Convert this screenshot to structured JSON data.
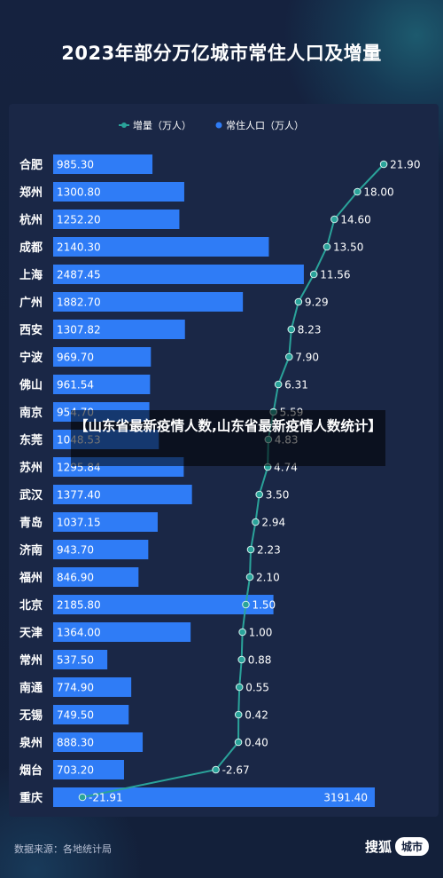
{
  "chart_data": {
    "type": "bar",
    "title": "2023年部分万亿城市常住人口及增量",
    "legend": {
      "placement": "top-right",
      "entries": [
        "增量（万人）",
        "常住人口（万人）"
      ]
    },
    "categories": [
      "合肥",
      "郑州",
      "杭州",
      "成都",
      "上海",
      "广州",
      "西安",
      "宁波",
      "佛山",
      "南京",
      "东莞",
      "苏州",
      "武汉",
      "青岛",
      "济南",
      "福州",
      "北京",
      "天津",
      "常州",
      "南通",
      "无锡",
      "泉州",
      "烟台",
      "重庆"
    ],
    "series": [
      {
        "name": "常住人口（万人）",
        "type": "bar",
        "color": "#2f7cf6",
        "values": [
          985.3,
          1300.8,
          1252.2,
          2140.3,
          2487.45,
          1882.7,
          1307.82,
          969.7,
          961.54,
          954.7,
          1048.53,
          1295.84,
          1377.4,
          1037.15,
          943.7,
          846.9,
          2185.8,
          1364.0,
          537.5,
          774.9,
          749.5,
          888.3,
          703.2,
          3191.4
        ],
        "labels": [
          "985.30",
          "1300.80",
          "1252.20",
          "2140.30",
          "2487.45",
          "1882.70",
          "1307.82",
          "969.70",
          "961.54",
          "954.70",
          "1048.53",
          "1295.84",
          "1377.40",
          "1037.15",
          "943.70",
          "846.90",
          "2185.80",
          "1364.00",
          "537.50",
          "774.90",
          "749.50",
          "888.30",
          "703.20",
          "3191.40"
        ]
      },
      {
        "name": "增量（万人）",
        "type": "line",
        "color": "#2aa39a",
        "values": [
          21.9,
          18.0,
          14.6,
          13.5,
          11.56,
          9.29,
          8.23,
          7.9,
          6.31,
          5.59,
          4.83,
          4.74,
          3.5,
          2.94,
          2.23,
          2.1,
          1.5,
          1.0,
          0.88,
          0.55,
          0.42,
          0.4,
          -2.67,
          -21.91
        ],
        "labels": [
          "21.90",
          "18.00",
          "14.60",
          "13.50",
          "11.56",
          "9.29",
          "8.23",
          "7.90",
          "6.31",
          "5.59",
          "4.83",
          "4.74",
          "3.50",
          "2.94",
          "2.23",
          "2.10",
          "1.50",
          "1.00",
          "0.88",
          "0.55",
          "0.42",
          "0.40",
          "-2.67",
          "-21.91"
        ]
      }
    ],
    "grid": false
  },
  "overlay_text": "【山东省最新疫情人数,山东省最新疫情人数统计】",
  "footer": {
    "source": "数据来源：各地统计局",
    "brand_name": "搜狐",
    "brand_badge": "城市"
  },
  "colors": {
    "background": "#14213d",
    "panel": "#1a2746",
    "bar": "#2f7cf6",
    "line": "#2aa39a"
  }
}
